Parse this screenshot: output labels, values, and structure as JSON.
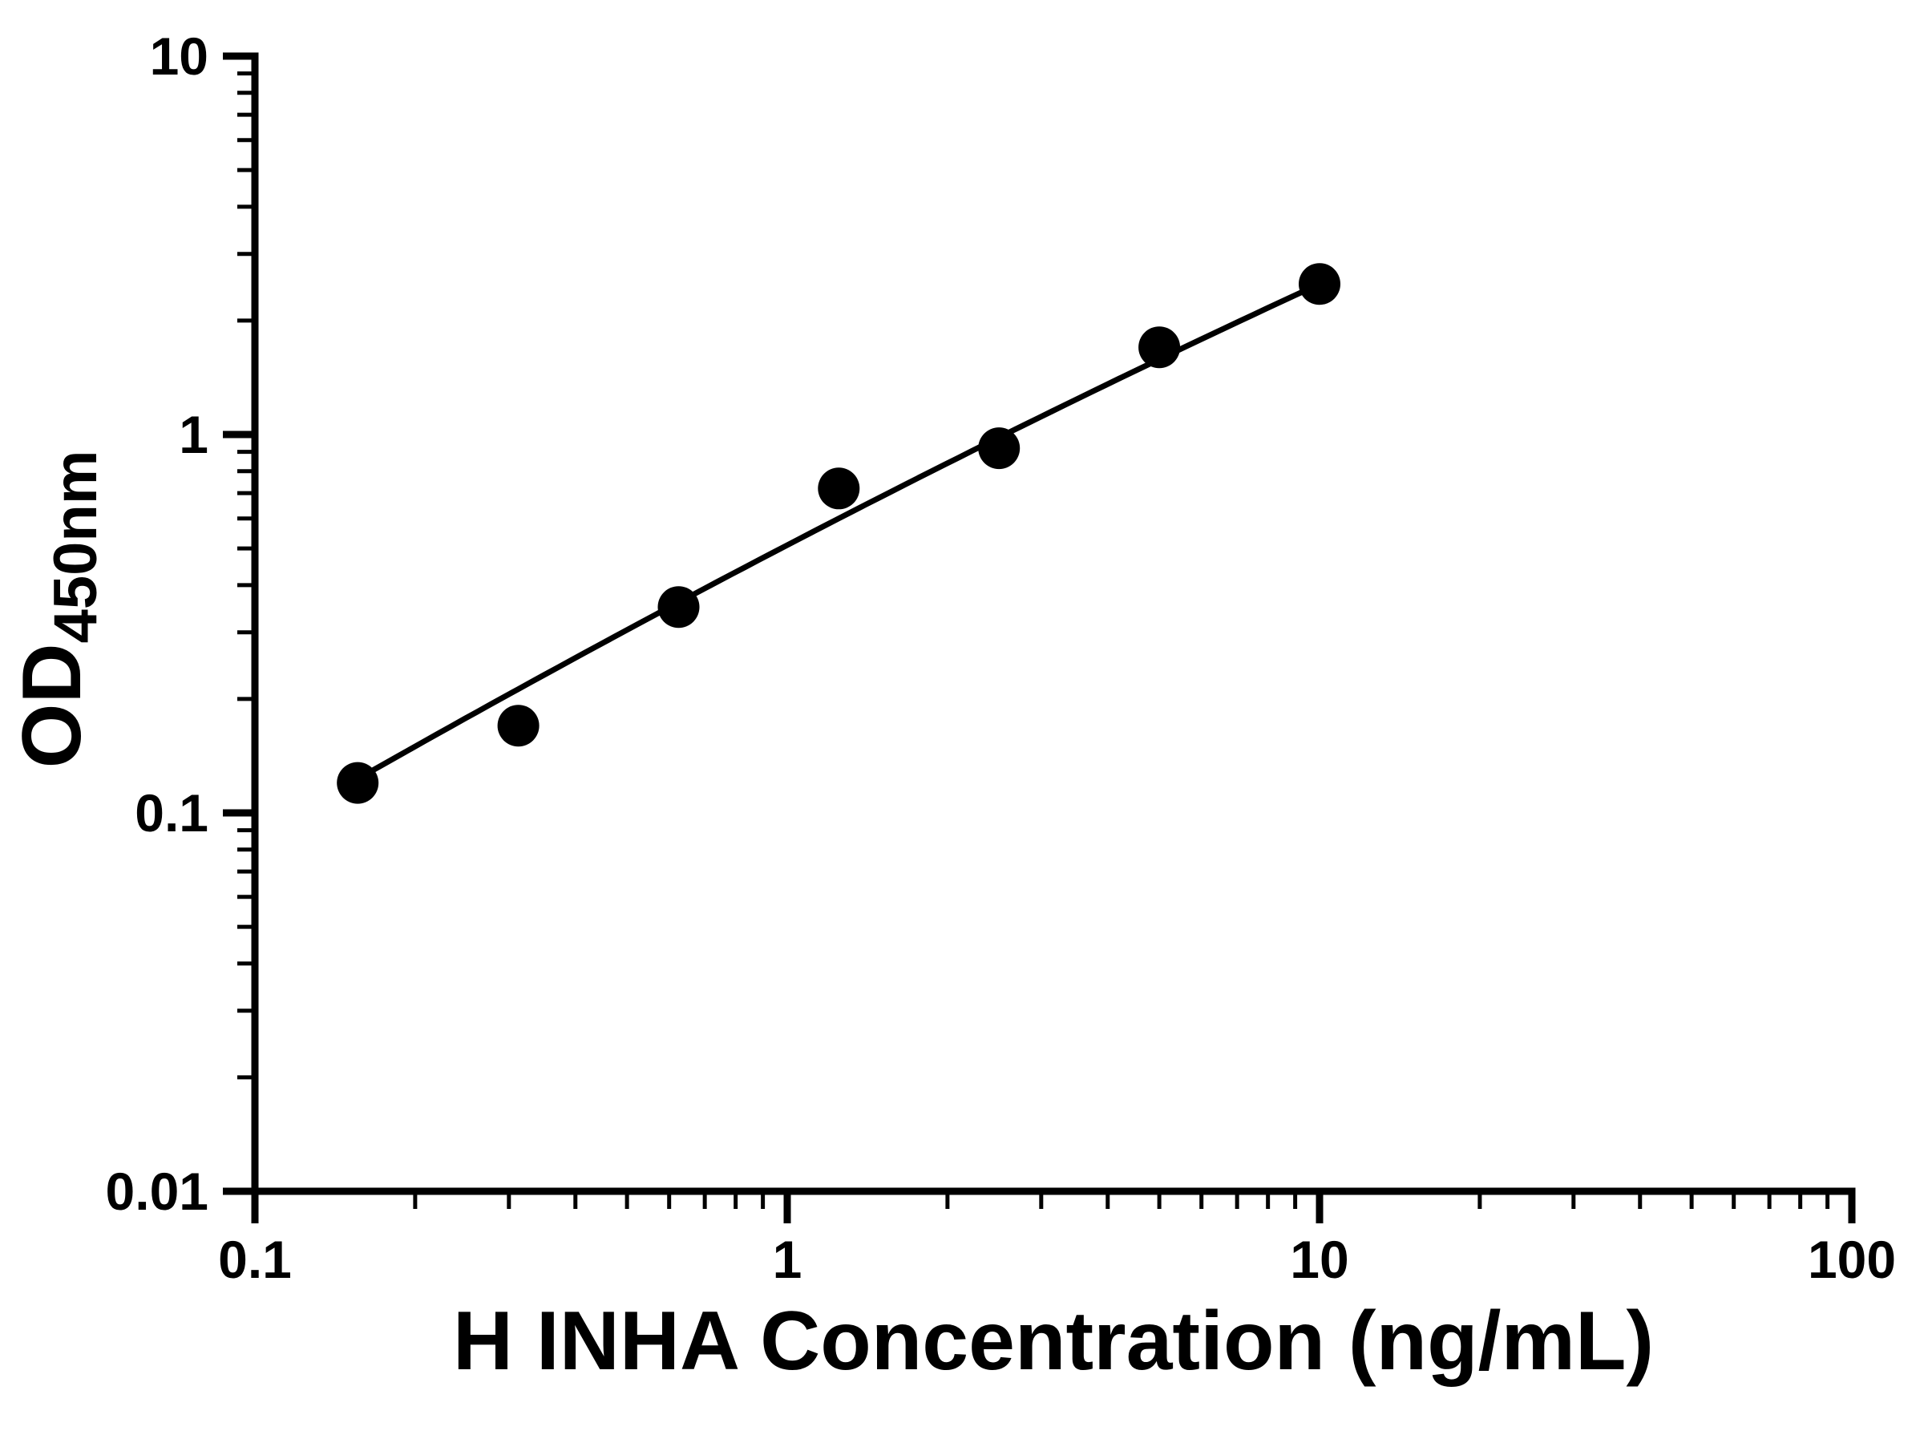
{
  "chart_data": {
    "type": "scatter",
    "title": "",
    "xlabel": "H INHA Concentration (ng/mL)",
    "ylabel_main": "OD",
    "ylabel_sub": "450nm",
    "x_scale": "log",
    "y_scale": "log",
    "xlim": [
      0.1,
      100
    ],
    "ylim": [
      0.01,
      10
    ],
    "x_ticks": [
      0.1,
      1,
      10,
      100
    ],
    "x_tick_labels": [
      "0.1",
      "1",
      "10",
      "100"
    ],
    "y_ticks": [
      0.01,
      0.1,
      1,
      10
    ],
    "y_tick_labels": [
      "0.01",
      "0.1",
      "1",
      "10"
    ],
    "grid": false,
    "legend": null,
    "points": {
      "x": [
        0.156,
        0.3125,
        0.625,
        1.25,
        2.5,
        5,
        10
      ],
      "y": [
        0.12,
        0.17,
        0.35,
        0.72,
        0.92,
        1.7,
        2.5
      ]
    },
    "trendline": {
      "shape": "quadratic-in-log-log",
      "anchors_x": [
        0.156,
        1.25,
        10
      ],
      "anchors_y": [
        0.123,
        0.6,
        2.5
      ]
    },
    "marker_color": "#000000",
    "line_color": "#000000",
    "axis_color": "#000000",
    "background": "#ffffff"
  }
}
